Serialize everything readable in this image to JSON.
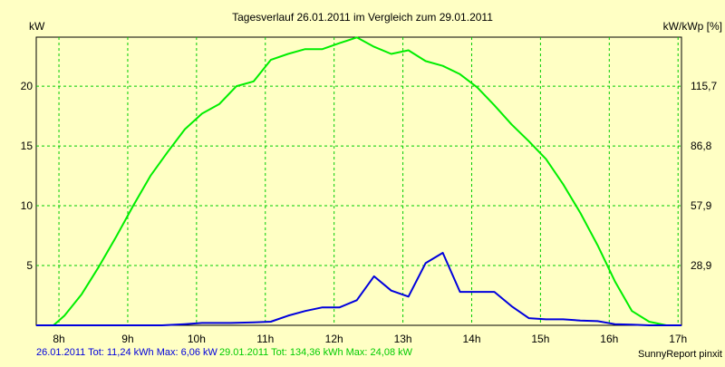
{
  "chart_data": {
    "type": "line",
    "title": "Tagesverlauf 26.01.2011 im Vergleich zum 29.01.2011",
    "ylabel_left": "kW",
    "ylabel_right": "kW/kWp [%]",
    "x_ticks": [
      "8h",
      "9h",
      "10h",
      "11h",
      "12h",
      "13h",
      "14h",
      "15h",
      "16h",
      "17h"
    ],
    "y_ticks_left": [
      5,
      10,
      15,
      20
    ],
    "y_ticks_right": [
      "28,9",
      "57,9",
      "86,8",
      "115,7"
    ],
    "xlim": [
      7.67,
      17.05
    ],
    "ylim": [
      0,
      24.1
    ],
    "grid": true,
    "series": [
      {
        "name": "29.01.2011",
        "color": "#00ee00",
        "x": [
          7.67,
          7.92,
          8.08,
          8.33,
          8.58,
          8.83,
          9.08,
          9.33,
          9.58,
          9.83,
          10.08,
          10.33,
          10.58,
          10.83,
          11.08,
          11.33,
          11.58,
          11.83,
          12.08,
          12.33,
          12.58,
          12.83,
          13.08,
          13.33,
          13.58,
          13.83,
          14.08,
          14.33,
          14.58,
          14.83,
          15.08,
          15.33,
          15.58,
          15.83,
          16.08,
          16.33,
          16.58,
          16.83,
          17.05
        ],
        "y": [
          0,
          0,
          0.8,
          2.6,
          4.9,
          7.4,
          10,
          12.5,
          14.5,
          16.4,
          17.7,
          18.5,
          20,
          20.4,
          22.2,
          22.7,
          23.1,
          23.1,
          23.6,
          24.08,
          23.3,
          22.7,
          23,
          22.1,
          21.7,
          21,
          19.9,
          18.4,
          16.8,
          15.4,
          13.9,
          11.8,
          9.4,
          6.7,
          3.7,
          1.2,
          0.3,
          0,
          0
        ]
      },
      {
        "name": "26.01.2011",
        "color": "#0000dd",
        "x": [
          7.67,
          8.08,
          8.5,
          9,
          9.5,
          9.83,
          10.08,
          10.5,
          10.83,
          11.08,
          11.33,
          11.58,
          11.83,
          12.08,
          12.33,
          12.58,
          12.83,
          13.08,
          13.33,
          13.58,
          13.83,
          14.08,
          14.33,
          14.58,
          14.83,
          15.08,
          15.33,
          15.58,
          15.83,
          16.08,
          16.33,
          16.58,
          16.83,
          17.05
        ],
        "y": [
          0,
          0,
          0,
          0,
          0,
          0.1,
          0.2,
          0.2,
          0.25,
          0.3,
          0.8,
          1.2,
          1.5,
          1.5,
          2.1,
          4.1,
          2.9,
          2.4,
          5.2,
          6.06,
          2.8,
          2.8,
          2.8,
          1.6,
          0.6,
          0.5,
          0.5,
          0.4,
          0.35,
          0.1,
          0.05,
          0,
          0,
          0
        ]
      }
    ]
  },
  "footer": {
    "series1_text": "26.01.2011 Tot: 11,24 kWh Max: 6,06 kW",
    "series2_text": "29.01.2011 Tot: 134,36 kWh Max: 24,08 kW",
    "credit": "SunnyReport pinxit"
  }
}
